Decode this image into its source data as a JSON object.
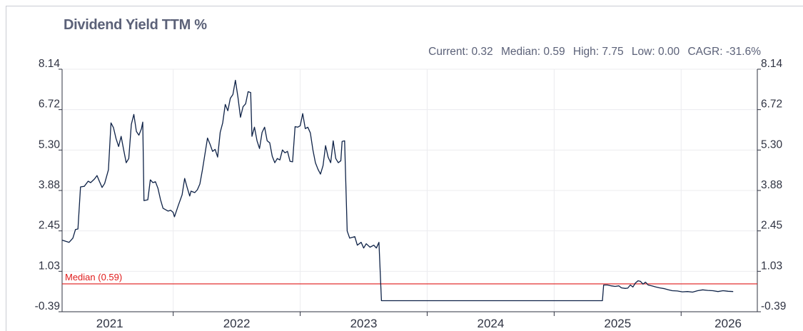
{
  "chart_data": {
    "type": "line",
    "title": "Dividend Yield TTM %",
    "stats": [
      {
        "label": "Current",
        "value": "0.32"
      },
      {
        "label": "Median",
        "value": "0.59"
      },
      {
        "label": "High",
        "value": "7.75"
      },
      {
        "label": "Low",
        "value": "0.00"
      },
      {
        "label": "CAGR",
        "value": "-31.6%"
      }
    ],
    "y_ticks": [
      "8.14",
      "6.72",
      "5.30",
      "3.88",
      "2.45",
      "1.03",
      "-0.39"
    ],
    "ylim": [
      -0.39,
      8.14
    ],
    "x_tick_labels": [
      {
        "label": "2021",
        "x": 2021.25
      },
      {
        "label": "2022",
        "x": 2022.25
      },
      {
        "label": "2023",
        "x": 2023.25
      },
      {
        "label": "2024",
        "x": 2024.25
      },
      {
        "label": "2025",
        "x": 2025.25
      },
      {
        "label": "2026",
        "x": 2026.12
      }
    ],
    "x_year_boundaries": [
      2021.75,
      2022.75,
      2023.75,
      2024.75,
      2025.75
    ],
    "xlim": [
      2020.875,
      2026.35
    ],
    "median_line": {
      "label": "Median (0.59)",
      "value": 0.59,
      "color": "#e01b1b"
    },
    "series": [
      {
        "color": "#0e2247",
        "points": [
          [
            2020.875,
            2.13
          ],
          [
            2020.93,
            2.05
          ],
          [
            2020.96,
            2.2
          ],
          [
            2020.98,
            2.5
          ],
          [
            2021.0,
            2.52
          ],
          [
            2021.02,
            4.0
          ],
          [
            2021.05,
            4.02
          ],
          [
            2021.08,
            4.2
          ],
          [
            2021.1,
            4.15
          ],
          [
            2021.13,
            4.28
          ],
          [
            2021.15,
            4.4
          ],
          [
            2021.17,
            4.18
          ],
          [
            2021.19,
            3.98
          ],
          [
            2021.21,
            4.12
          ],
          [
            2021.24,
            4.6
          ],
          [
            2021.26,
            6.25
          ],
          [
            2021.28,
            6.08
          ],
          [
            2021.3,
            5.7
          ],
          [
            2021.32,
            5.42
          ],
          [
            2021.34,
            5.78
          ],
          [
            2021.36,
            5.3
          ],
          [
            2021.38,
            4.85
          ],
          [
            2021.4,
            5.0
          ],
          [
            2021.42,
            6.2
          ],
          [
            2021.44,
            6.55
          ],
          [
            2021.46,
            5.95
          ],
          [
            2021.48,
            5.82
          ],
          [
            2021.5,
            6.05
          ],
          [
            2021.51,
            6.28
          ],
          [
            2021.52,
            3.52
          ],
          [
            2021.55,
            3.55
          ],
          [
            2021.57,
            4.25
          ],
          [
            2021.59,
            4.15
          ],
          [
            2021.61,
            4.18
          ],
          [
            2021.63,
            3.95
          ],
          [
            2021.65,
            3.55
          ],
          [
            2021.67,
            3.25
          ],
          [
            2021.69,
            3.2
          ],
          [
            2021.71,
            3.15
          ],
          [
            2021.73,
            3.18
          ],
          [
            2021.75,
            3.1
          ],
          [
            2021.76,
            2.95
          ],
          [
            2021.79,
            3.35
          ],
          [
            2021.82,
            3.72
          ],
          [
            2021.84,
            4.3
          ],
          [
            2021.86,
            3.98
          ],
          [
            2021.88,
            3.68
          ],
          [
            2021.89,
            3.85
          ],
          [
            2021.92,
            3.8
          ],
          [
            2021.94,
            3.9
          ],
          [
            2021.96,
            4.1
          ],
          [
            2021.98,
            4.6
          ],
          [
            2022.0,
            5.15
          ],
          [
            2022.02,
            5.72
          ],
          [
            2022.04,
            5.5
          ],
          [
            2022.06,
            5.25
          ],
          [
            2022.08,
            5.32
          ],
          [
            2022.1,
            5.05
          ],
          [
            2022.12,
            5.92
          ],
          [
            2022.14,
            6.25
          ],
          [
            2022.16,
            6.9
          ],
          [
            2022.18,
            6.68
          ],
          [
            2022.2,
            7.12
          ],
          [
            2022.22,
            7.25
          ],
          [
            2022.24,
            7.75
          ],
          [
            2022.26,
            7.15
          ],
          [
            2022.28,
            6.45
          ],
          [
            2022.3,
            6.82
          ],
          [
            2022.32,
            6.92
          ],
          [
            2022.34,
            7.35
          ],
          [
            2022.36,
            7.32
          ],
          [
            2022.37,
            5.78
          ],
          [
            2022.39,
            6.1
          ],
          [
            2022.41,
            5.62
          ],
          [
            2022.43,
            5.35
          ],
          [
            2022.45,
            5.92
          ],
          [
            2022.47,
            6.1
          ],
          [
            2022.49,
            5.62
          ],
          [
            2022.51,
            5.55
          ],
          [
            2022.53,
            5.08
          ],
          [
            2022.55,
            4.85
          ],
          [
            2022.57,
            5.0
          ],
          [
            2022.59,
            4.95
          ],
          [
            2022.61,
            5.3
          ],
          [
            2022.63,
            5.2
          ],
          [
            2022.65,
            5.25
          ],
          [
            2022.67,
            4.9
          ],
          [
            2022.69,
            4.88
          ],
          [
            2022.71,
            6.12
          ],
          [
            2022.73,
            6.1
          ],
          [
            2022.75,
            6.15
          ],
          [
            2022.77,
            6.58
          ],
          [
            2022.79,
            6.05
          ],
          [
            2022.81,
            6.1
          ],
          [
            2022.83,
            5.9
          ],
          [
            2022.85,
            5.3
          ],
          [
            2022.87,
            4.85
          ],
          [
            2022.89,
            4.62
          ],
          [
            2022.91,
            4.45
          ],
          [
            2022.93,
            4.75
          ],
          [
            2022.95,
            5.45
          ],
          [
            2022.97,
            5.05
          ],
          [
            2022.99,
            4.85
          ],
          [
            2023.01,
            5.62
          ],
          [
            2023.03,
            5.0
          ],
          [
            2023.05,
            4.85
          ],
          [
            2023.07,
            4.92
          ],
          [
            2023.08,
            5.6
          ],
          [
            2023.1,
            5.62
          ],
          [
            2023.12,
            2.45
          ],
          [
            2023.14,
            2.2
          ],
          [
            2023.18,
            2.25
          ],
          [
            2023.2,
            1.95
          ],
          [
            2023.23,
            2.05
          ],
          [
            2023.25,
            1.85
          ],
          [
            2023.27,
            2.0
          ],
          [
            2023.3,
            1.88
          ],
          [
            2023.33,
            1.95
          ],
          [
            2023.35,
            1.85
          ],
          [
            2023.37,
            2.05
          ],
          [
            2023.39,
            0.0
          ],
          [
            2025.13,
            0.0
          ],
          [
            2025.14,
            0.55
          ],
          [
            2025.17,
            0.55
          ],
          [
            2025.2,
            0.52
          ],
          [
            2025.23,
            0.5
          ],
          [
            2025.26,
            0.52
          ],
          [
            2025.28,
            0.45
          ],
          [
            2025.31,
            0.43
          ],
          [
            2025.33,
            0.44
          ],
          [
            2025.35,
            0.55
          ],
          [
            2025.37,
            0.48
          ],
          [
            2025.39,
            0.62
          ],
          [
            2025.41,
            0.7
          ],
          [
            2025.43,
            0.68
          ],
          [
            2025.45,
            0.58
          ],
          [
            2025.47,
            0.65
          ],
          [
            2025.49,
            0.55
          ],
          [
            2025.52,
            0.52
          ],
          [
            2025.55,
            0.48
          ],
          [
            2025.58,
            0.45
          ],
          [
            2025.62,
            0.42
          ],
          [
            2025.65,
            0.38
          ],
          [
            2025.68,
            0.35
          ],
          [
            2025.72,
            0.34
          ],
          [
            2025.76,
            0.31
          ],
          [
            2025.8,
            0.32
          ],
          [
            2025.84,
            0.3
          ],
          [
            2025.88,
            0.35
          ],
          [
            2025.92,
            0.38
          ],
          [
            2025.96,
            0.36
          ],
          [
            2026.0,
            0.35
          ],
          [
            2026.04,
            0.32
          ],
          [
            2026.08,
            0.35
          ],
          [
            2026.12,
            0.33
          ],
          [
            2026.16,
            0.32
          ]
        ]
      }
    ]
  }
}
